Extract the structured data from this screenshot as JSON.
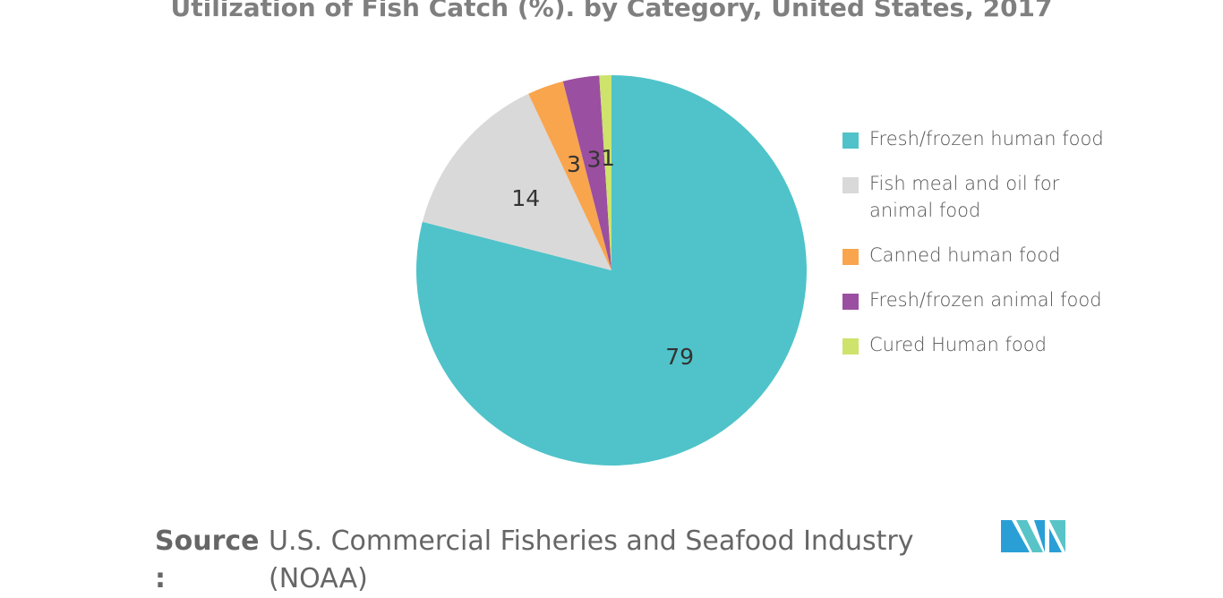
{
  "chart_data": {
    "type": "pie",
    "title": "Utilization of Fish Catch (%). by Category, United States, 2017",
    "categories": [
      "Fresh/frozen human food",
      "Fish meal and oil for animal food",
      "Canned human food",
      "Fresh/frozen animal food",
      "Cured Human food"
    ],
    "values": [
      79,
      14,
      3,
      3,
      1
    ],
    "colors": [
      "#4fc3c9",
      "#d9d9d9",
      "#f8a54e",
      "#9b4fa0",
      "#cde36b"
    ],
    "legend": "right"
  },
  "source": {
    "label": "Source :",
    "text": "U.S. Commercial Fisheries and Seafood Industry (NOAA)"
  }
}
